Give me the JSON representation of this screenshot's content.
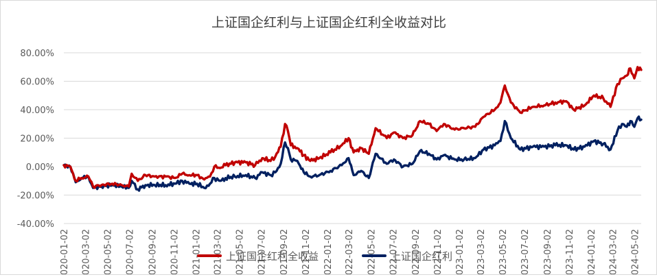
{
  "chart_data": {
    "type": "line",
    "title": "上证国企红利与上证国企红利全收益对比",
    "xlabel": "",
    "ylabel": "",
    "ylim": [
      -40,
      80
    ],
    "y_ticks": [
      "80.00%",
      "60.00%",
      "40.00%",
      "20.00%",
      "0.00%",
      "-20.00%",
      "-40.00%"
    ],
    "y_tick_values": [
      80,
      60,
      40,
      20,
      0,
      -20,
      -40
    ],
    "x_range": [
      "2020-01-02",
      "2024-05-20"
    ],
    "x_ticks": [
      "2020-01-02",
      "2020-03-02",
      "2020-05-02",
      "2020-07-02",
      "2020-09-02",
      "2020-11-02",
      "2021-01-02",
      "2021-03-02",
      "2021-05-02",
      "2021-07-02",
      "2021-09-02",
      "2021-11-02",
      "2022-01-02",
      "2022-03-02",
      "2022-05-02",
      "2022-07-02",
      "2022-09-02",
      "2022-11-02",
      "2023-01-02",
      "2023-03-02",
      "2023-05-02",
      "2023-07-02",
      "2023-09-02",
      "2023-11-02",
      "2024-01-02",
      "2024-03-02",
      "2024-05-02"
    ],
    "grid": true,
    "legend_position": "bottom",
    "series": [
      {
        "name": "上证国企红利全收益",
        "color": "#c00000",
        "x": [
          "2020-01-02",
          "2020-01-20",
          "2020-02-04",
          "2020-02-20",
          "2020-03-10",
          "2020-03-23",
          "2020-04-15",
          "2020-05-15",
          "2020-06-10",
          "2020-06-30",
          "2020-07-08",
          "2020-07-25",
          "2020-08-15",
          "2020-09-10",
          "2020-10-10",
          "2020-11-05",
          "2020-11-25",
          "2020-12-15",
          "2021-01-05",
          "2021-01-25",
          "2021-02-10",
          "2021-02-22",
          "2021-03-10",
          "2021-03-25",
          "2021-04-20",
          "2021-05-20",
          "2021-06-15",
          "2021-07-05",
          "2021-07-28",
          "2021-08-10",
          "2021-08-25",
          "2021-09-06",
          "2021-09-14",
          "2021-09-22",
          "2021-10-10",
          "2021-10-28",
          "2021-11-15",
          "2021-12-10",
          "2022-01-10",
          "2022-02-10",
          "2022-03-01",
          "2022-03-15",
          "2022-04-05",
          "2022-04-26",
          "2022-05-15",
          "2022-06-15",
          "2022-07-05",
          "2022-07-30",
          "2022-08-25",
          "2022-09-15",
          "2022-10-10",
          "2022-10-31",
          "2022-11-20",
          "2022-12-20",
          "2023-01-15",
          "2023-02-15",
          "2023-03-10",
          "2023-04-10",
          "2023-04-26",
          "2023-05-08",
          "2023-05-25",
          "2023-06-20",
          "2023-07-25",
          "2023-08-25",
          "2023-09-25",
          "2023-10-25",
          "2023-11-15",
          "2023-12-15",
          "2024-01-10",
          "2024-02-05",
          "2024-02-25",
          "2024-03-15",
          "2024-03-28",
          "2024-04-10",
          "2024-04-20",
          "2024-05-01",
          "2024-05-10",
          "2024-05-20"
        ],
        "values": [
          1,
          0,
          -10,
          -8,
          -7,
          -14,
          -13,
          -12,
          -13,
          -14,
          -5,
          -10,
          -6,
          -7,
          -7,
          -8,
          -5,
          -6,
          -6,
          -9,
          -7,
          0,
          -1,
          1,
          3,
          3,
          1,
          6,
          4,
          7,
          14,
          30,
          25,
          15,
          13,
          8,
          4,
          6,
          10,
          15,
          20,
          10,
          13,
          9,
          27,
          20,
          24,
          20,
          22,
          32,
          30,
          25,
          30,
          26,
          27,
          28,
          35,
          40,
          45,
          57,
          45,
          38,
          42,
          43,
          45,
          46,
          40,
          43,
          50,
          48,
          42,
          58,
          62,
          64,
          69,
          62,
          70,
          68
        ]
      },
      {
        "name": "上证国企红利",
        "color": "#002060",
        "x": [
          "2020-01-02",
          "2020-01-20",
          "2020-02-04",
          "2020-02-20",
          "2020-03-10",
          "2020-03-23",
          "2020-04-15",
          "2020-05-15",
          "2020-06-10",
          "2020-06-30",
          "2020-07-08",
          "2020-07-25",
          "2020-08-15",
          "2020-09-10",
          "2020-10-10",
          "2020-11-05",
          "2020-11-25",
          "2020-12-15",
          "2021-01-05",
          "2021-01-25",
          "2021-02-10",
          "2021-02-22",
          "2021-03-10",
          "2021-03-25",
          "2021-04-20",
          "2021-05-20",
          "2021-06-15",
          "2021-07-05",
          "2021-07-28",
          "2021-08-10",
          "2021-08-25",
          "2021-09-06",
          "2021-09-14",
          "2021-09-22",
          "2021-10-10",
          "2021-10-28",
          "2021-11-15",
          "2021-12-10",
          "2022-01-10",
          "2022-02-10",
          "2022-03-01",
          "2022-03-15",
          "2022-04-05",
          "2022-04-26",
          "2022-05-15",
          "2022-06-15",
          "2022-07-05",
          "2022-07-30",
          "2022-08-25",
          "2022-09-15",
          "2022-10-10",
          "2022-10-31",
          "2022-11-20",
          "2022-12-20",
          "2023-01-15",
          "2023-02-15",
          "2023-03-10",
          "2023-04-10",
          "2023-04-26",
          "2023-05-08",
          "2023-05-25",
          "2023-06-20",
          "2023-07-25",
          "2023-08-25",
          "2023-09-25",
          "2023-10-25",
          "2023-11-15",
          "2023-12-15",
          "2024-01-10",
          "2024-02-05",
          "2024-02-25",
          "2024-03-15",
          "2024-03-28",
          "2024-04-10",
          "2024-04-20",
          "2024-05-01",
          "2024-05-10",
          "2024-05-20"
        ],
        "values": [
          1,
          0,
          -11,
          -8,
          -7,
          -15,
          -14,
          -13,
          -14,
          -15,
          -10,
          -16,
          -13,
          -13,
          -13,
          -12,
          -10,
          -12,
          -12,
          -15,
          -12,
          -8,
          -10,
          -8,
          -7,
          -6,
          -8,
          -4,
          -6,
          -4,
          2,
          17,
          13,
          5,
          4,
          -4,
          -7,
          -6,
          -3,
          1,
          6,
          -6,
          -3,
          -8,
          9,
          2,
          5,
          0,
          2,
          11,
          9,
          5,
          8,
          5,
          5,
          6,
          12,
          15,
          18,
          32,
          20,
          12,
          14,
          14,
          15,
          15,
          12,
          14,
          18,
          16,
          12,
          25,
          30,
          28,
          32,
          28,
          34,
          33
        ]
      }
    ]
  }
}
